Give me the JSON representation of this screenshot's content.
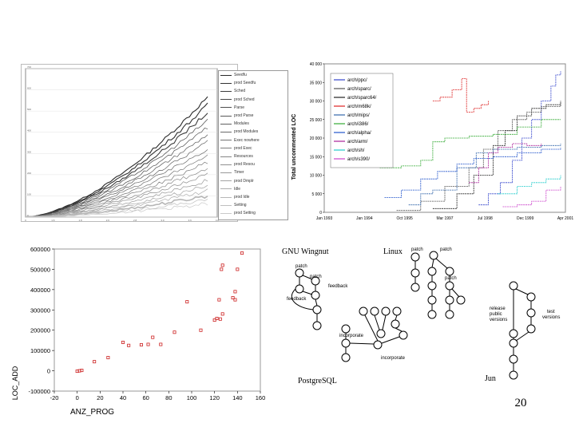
{
  "page_number": "20",
  "chart_data": [
    {
      "type": "line",
      "title": "",
      "xlabel": "",
      "ylabel": "",
      "x_ticks": [
        "0",
        "1.6",
        "1.8",
        "2.6",
        "2.8",
        "3.0",
        "3.6",
        "4.0"
      ],
      "y_ticks": [
        "0",
        "100",
        "200",
        "300",
        "400",
        "500",
        "600",
        "700"
      ],
      "legend": [
        "Seedfu",
        "prod Seedfu",
        "Sched",
        "prod Sched",
        "Parse",
        "prod Parse",
        "Modules",
        "prod Modules",
        "Exec nowhere",
        "prod Exec",
        "Resources",
        "prod Resou",
        "Timer",
        "prod Dmplr",
        "Idle",
        "prod Idle",
        "Setting",
        "prod Setting"
      ],
      "series_count": 18
    },
    {
      "type": "line",
      "title": "",
      "xlabel": "",
      "ylabel": "Total uncommented LOC",
      "x_ticks": [
        "Jan 1993",
        "Jan 1994",
        "Oct 1995",
        "Mar 1997",
        "Jul 1998",
        "Dec 1999",
        "Apr 2001"
      ],
      "y_ticks": [
        "0",
        "5 000",
        "10 000",
        "15 000",
        "20 000",
        "25 000",
        "30 000",
        "35 000",
        "40 000"
      ],
      "ylim": [
        0,
        40000
      ],
      "series": [
        {
          "name": "arch/ppc/",
          "color": "#3344cc",
          "points": [
            [
              0.64,
              2000
            ],
            [
              0.68,
              5000
            ],
            [
              0.73,
              8000
            ],
            [
              0.78,
              14000
            ],
            [
              0.82,
              20000
            ],
            [
              0.86,
              25000
            ],
            [
              0.9,
              30000
            ],
            [
              0.94,
              34000
            ],
            [
              0.96,
              37000
            ],
            [
              0.98,
              38000
            ]
          ]
        },
        {
          "name": "arch/sparc/",
          "color": "#555555",
          "points": [
            [
              0.3,
              500
            ],
            [
              0.4,
              3000
            ],
            [
              0.5,
              7000
            ],
            [
              0.6,
              12000
            ],
            [
              0.66,
              17000
            ],
            [
              0.72,
              22000
            ],
            [
              0.78,
              25000
            ],
            [
              0.84,
              27000
            ],
            [
              0.9,
              28500
            ],
            [
              0.98,
              30000
            ]
          ]
        },
        {
          "name": "arch/sparc64/",
          "color": "#222222",
          "points": [
            [
              0.45,
              1000
            ],
            [
              0.55,
              5000
            ],
            [
              0.62,
              10000
            ],
            [
              0.7,
              18000
            ],
            [
              0.75,
              22000
            ],
            [
              0.8,
              26000
            ],
            [
              0.86,
              28000
            ],
            [
              0.92,
              29000
            ],
            [
              0.98,
              30000
            ]
          ]
        },
        {
          "name": "arch/m68k/",
          "color": "#dd2222",
          "points": [
            [
              0.45,
              30000
            ],
            [
              0.48,
              31000
            ],
            [
              0.53,
              33000
            ],
            [
              0.57,
              36000
            ],
            [
              0.59,
              27000
            ],
            [
              0.62,
              28000
            ],
            [
              0.65,
              29000
            ],
            [
              0.68,
              30000
            ]
          ]
        },
        {
          "name": "arch/mips/",
          "color": "#3366aa",
          "points": [
            [
              0.35,
              2000
            ],
            [
              0.4,
              5000
            ],
            [
              0.45,
              6000
            ],
            [
              0.55,
              12000
            ],
            [
              0.63,
              16000
            ],
            [
              0.7,
              17000
            ],
            [
              0.8,
              17500
            ],
            [
              0.9,
              18000
            ],
            [
              0.98,
              18500
            ]
          ]
        },
        {
          "name": "arch/i386/",
          "color": "#33aa33",
          "points": [
            [
              0.23,
              12000
            ],
            [
              0.32,
              12500
            ],
            [
              0.4,
              14000
            ],
            [
              0.45,
              19000
            ],
            [
              0.5,
              20000
            ],
            [
              0.6,
              20500
            ],
            [
              0.7,
              21000
            ],
            [
              0.8,
              23000
            ],
            [
              0.9,
              25000
            ],
            [
              0.98,
              25000
            ]
          ]
        },
        {
          "name": "arch/alpha/",
          "color": "#2255cc",
          "points": [
            [
              0.25,
              4000
            ],
            [
              0.32,
              6000
            ],
            [
              0.4,
              9000
            ],
            [
              0.47,
              11000
            ],
            [
              0.55,
              13000
            ],
            [
              0.62,
              14500
            ],
            [
              0.7,
              15000
            ],
            [
              0.8,
              16000
            ],
            [
              0.9,
              17000
            ],
            [
              0.98,
              17500
            ]
          ]
        },
        {
          "name": "arch/arm/",
          "color": "#aa2299",
          "points": [
            [
              0.6,
              8000
            ],
            [
              0.64,
              12000
            ],
            [
              0.68,
              16000
            ],
            [
              0.72,
              17500
            ],
            [
              0.78,
              18500
            ],
            [
              0.84,
              18000
            ],
            [
              0.9,
              18500
            ]
          ]
        },
        {
          "name": "arch/sh/",
          "color": "#22cccc",
          "points": [
            [
              0.72,
              5000
            ],
            [
              0.8,
              7000
            ],
            [
              0.86,
              8000
            ],
            [
              0.92,
              9000
            ],
            [
              0.98,
              10000
            ]
          ]
        },
        {
          "name": "arch/s390/",
          "color": "#cc44cc",
          "points": [
            [
              0.74,
              1500
            ],
            [
              0.8,
              2000
            ],
            [
              0.86,
              3000
            ],
            [
              0.92,
              6000
            ],
            [
              0.98,
              7000
            ]
          ]
        }
      ]
    },
    {
      "type": "scatter",
      "title": "",
      "xlabel": "ANZ_PROG",
      "ylabel": "LOC_ADD",
      "xlim": [
        -20,
        160
      ],
      "ylim": [
        -100000,
        600000
      ],
      "x_ticks": [
        "-20",
        "0",
        "20",
        "40",
        "60",
        "80",
        "100",
        "120",
        "140",
        "160"
      ],
      "y_ticks": [
        "-100000",
        "0",
        "100000",
        "200000",
        "300000",
        "400000",
        "500000",
        "600000"
      ],
      "points": [
        [
          0,
          -2000
        ],
        [
          2,
          0
        ],
        [
          4,
          2000
        ],
        [
          15,
          45000
        ],
        [
          27,
          65000
        ],
        [
          40,
          140000
        ],
        [
          45,
          125000
        ],
        [
          56,
          128000
        ],
        [
          62,
          130000
        ],
        [
          66,
          165000
        ],
        [
          73,
          130000
        ],
        [
          85,
          190000
        ],
        [
          96,
          340000
        ],
        [
          108,
          200000
        ],
        [
          120,
          250000
        ],
        [
          122,
          258000
        ],
        [
          125,
          255000
        ],
        [
          124,
          350000
        ],
        [
          127,
          280000
        ],
        [
          126,
          500000
        ],
        [
          127,
          520000
        ],
        [
          136,
          360000
        ],
        [
          138,
          350000
        ],
        [
          138,
          390000
        ],
        [
          140,
          500000
        ],
        [
          144,
          580000
        ]
      ]
    },
    {
      "type": "diagram",
      "labels": {
        "gnu": "GNU Wingnut",
        "linux": "Linux",
        "postgres": "PostgreSQL",
        "jun": "Jun",
        "patch1": "patch",
        "patch2": "patch",
        "feedback1": "feedback",
        "feedback2": "feedback",
        "incorporate1": "incorporate",
        "incorporate2": "incorporate",
        "lpatch1": "patch",
        "lpatch2": "patch",
        "lpatch3": "patch",
        "release": "release\npublic\nversions",
        "test": "test\nversions"
      }
    }
  ]
}
